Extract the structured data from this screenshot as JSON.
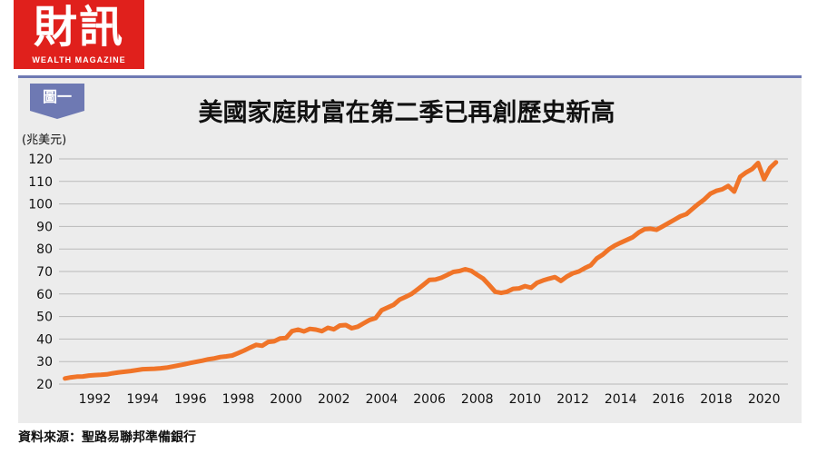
{
  "header": {
    "logo_text": "財訊",
    "logo_subtext": "WEALTH MAGAZINE",
    "figure_tag": "圖一"
  },
  "colors": {
    "line": "#f07428",
    "logo": "#e0201c",
    "tag": "#6e79b3"
  },
  "footer": {
    "source": "資料來源：聖路易聯邦準備銀行"
  },
  "chart_data": {
    "type": "line",
    "title": "美國家庭財富在第二季已再創歷史新高",
    "ylabel": "(兆美元)",
    "xlabel": "",
    "ylim": [
      20,
      120
    ],
    "xlim": [
      1990.5,
      2021.0
    ],
    "grid": true,
    "y_ticks": [
      20,
      30,
      40,
      50,
      60,
      70,
      80,
      90,
      100,
      110,
      120
    ],
    "x_ticks": [
      1992,
      1994,
      1996,
      1998,
      2000,
      2002,
      2004,
      2006,
      2008,
      2010,
      2012,
      2014,
      2016,
      2018,
      2020
    ],
    "series": [
      {
        "x": [
          1990.75,
          1991.0,
          1991.25,
          1991.5,
          1991.75,
          1992.0,
          1992.25,
          1992.5,
          1992.75,
          1993.0,
          1993.25,
          1993.5,
          1993.75,
          1994.0,
          1994.25,
          1994.5,
          1994.75,
          1995.0,
          1995.25,
          1995.5,
          1995.75,
          1996.0,
          1996.25,
          1996.5,
          1996.75,
          1997.0,
          1997.25,
          1997.5,
          1997.75,
          1998.0,
          1998.25,
          1998.5,
          1998.75,
          1999.0,
          1999.25,
          1999.5,
          1999.75,
          2000.0,
          2000.25,
          2000.5,
          2000.75,
          2001.0,
          2001.25,
          2001.5,
          2001.75,
          2002.0,
          2002.25,
          2002.5,
          2002.75,
          2003.0,
          2003.25,
          2003.5,
          2003.75,
          2004.0,
          2004.25,
          2004.5,
          2004.75,
          2005.0,
          2005.25,
          2005.5,
          2005.75,
          2006.0,
          2006.25,
          2006.5,
          2006.75,
          2007.0,
          2007.25,
          2007.5,
          2007.75,
          2008.0,
          2008.25,
          2008.5,
          2008.75,
          2009.0,
          2009.25,
          2009.5,
          2009.75,
          2010.0,
          2010.25,
          2010.5,
          2010.75,
          2011.0,
          2011.25,
          2011.5,
          2011.75,
          2012.0,
          2012.25,
          2012.5,
          2012.75,
          2013.0,
          2013.25,
          2013.5,
          2013.75,
          2014.0,
          2014.25,
          2014.5,
          2014.75,
          2015.0,
          2015.25,
          2015.5,
          2015.75,
          2016.0,
          2016.25,
          2016.5,
          2016.75,
          2017.0,
          2017.25,
          2017.5,
          2017.75,
          2018.0,
          2018.25,
          2018.5,
          2018.75,
          2019.0,
          2019.25,
          2019.5,
          2019.75,
          2020.0,
          2020.25,
          2020.5
        ],
        "values": [
          22.5,
          23.0,
          23.3,
          23.4,
          23.8,
          24.0,
          24.1,
          24.3,
          24.8,
          25.2,
          25.5,
          25.8,
          26.2,
          26.6,
          26.7,
          26.8,
          27.0,
          27.3,
          27.8,
          28.3,
          28.8,
          29.4,
          29.9,
          30.4,
          31.0,
          31.4,
          32.0,
          32.3,
          32.7,
          33.8,
          34.9,
          36.2,
          37.4,
          37.0,
          38.7,
          39.0,
          40.3,
          40.5,
          43.5,
          44.2,
          43.4,
          44.5,
          44.2,
          43.5,
          45.0,
          44.3,
          46.0,
          46.2,
          44.8,
          45.5,
          47.0,
          48.5,
          49.3,
          52.8,
          54.0,
          55.2,
          57.5,
          58.7,
          60.0,
          62.0,
          64.1,
          66.3,
          66.4,
          67.2,
          68.5,
          69.8,
          70.2,
          71.0,
          70.3,
          68.5,
          66.8,
          64.0,
          61.0,
          60.5,
          61.0,
          62.3,
          62.5,
          63.5,
          62.8,
          65.0,
          66.0,
          66.8,
          67.5,
          65.8,
          67.8,
          69.2,
          70.0,
          71.5,
          72.8,
          75.8,
          77.5,
          79.8,
          81.5,
          82.8,
          84.0,
          85.2,
          87.3,
          88.8,
          89.0,
          88.5,
          90.0,
          91.5,
          93.0,
          94.5,
          95.5,
          97.8,
          100.0,
          102.0,
          104.5,
          105.8,
          106.5,
          108.0,
          105.5,
          112.0,
          114.0,
          115.5,
          118.2,
          111.0,
          116.0,
          118.5
        ]
      }
    ]
  }
}
